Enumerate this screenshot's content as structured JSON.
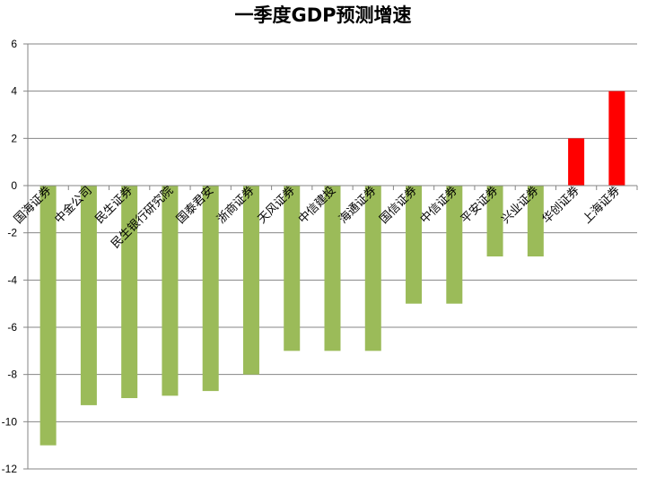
{
  "chart_data": {
    "type": "bar",
    "title": "一季度GDP预测增速",
    "xlabel": "",
    "ylabel": "",
    "ylim": [
      -12,
      6
    ],
    "yticks": [
      6,
      4,
      2,
      0,
      -2,
      -4,
      -6,
      -8,
      -10,
      -12
    ],
    "grid": true,
    "legend": "none",
    "categories": [
      "国海证券",
      "中金公司",
      "民生证券",
      "民生银行研究院",
      "国泰君安",
      "浙商证券",
      "天风证券",
      "中信建投",
      "海通证券",
      "国信证券",
      "中信证券",
      "平安证券",
      "兴业证券",
      "华创证券",
      "上海证券"
    ],
    "values": [
      -11,
      -9.3,
      -9,
      -8.9,
      -8.7,
      -8,
      -7,
      -7,
      -7,
      -5,
      -5,
      -3,
      -3,
      2,
      4
    ],
    "colors": {
      "negative": "#9BBB59",
      "positive": "#FF0000",
      "grid": "#868686"
    }
  }
}
